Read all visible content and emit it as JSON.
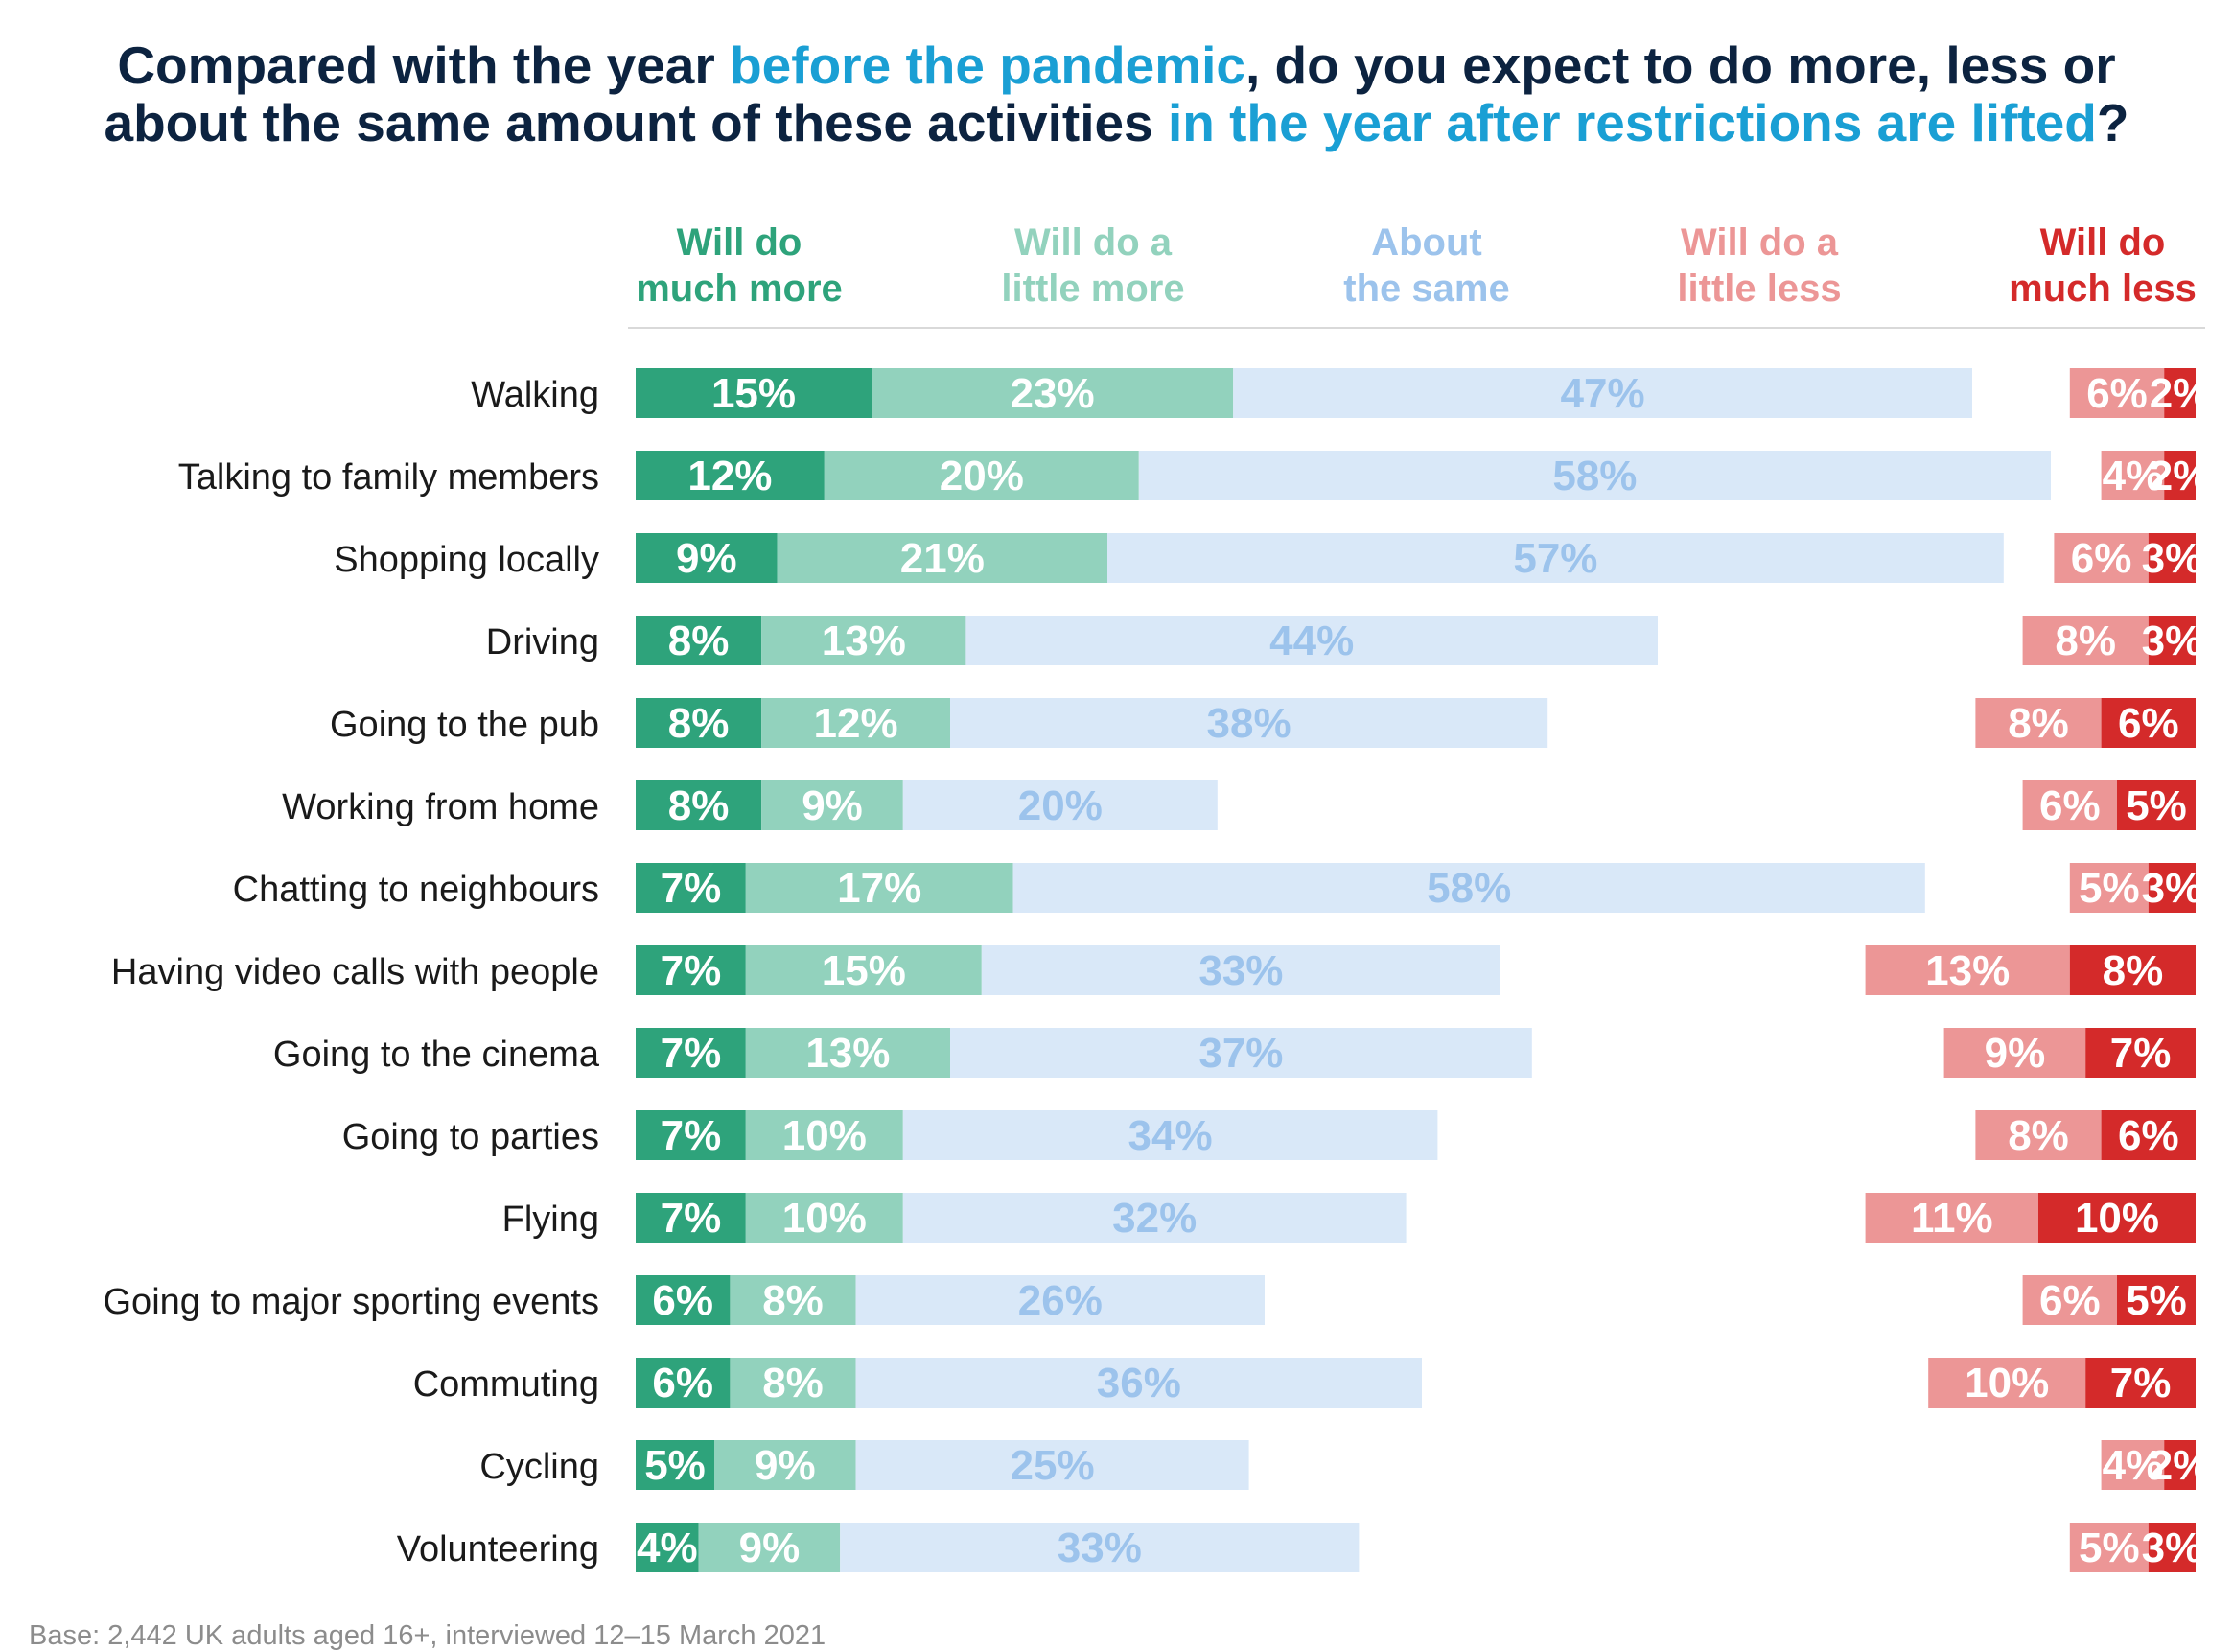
{
  "title": {
    "line1_a": "Compared with the year ",
    "line1_b": "before the pandemic",
    "line1_c": ", do you expect to do more, less or",
    "line2_a": "about the same amount of these activities ",
    "line2_b": "in the year after restrictions are lifted",
    "line2_c": "?"
  },
  "footnote": "Base: 2,442 UK adults aged 16+, interviewed 12–15 March 2021",
  "colors": {
    "title_dark": "#0c2340",
    "title_accent": "#1a9fd4",
    "much_more": "#2ea37b",
    "little_more": "#92d2bd",
    "same": "#d9e8f8",
    "little_less": "#ec9696",
    "much_less": "#d42a2a",
    "same_label": "#9cc3ec"
  },
  "chart_data": {
    "type": "bar",
    "orientation": "horizontal",
    "stacked": true,
    "categories": [
      "Walking",
      "Talking to family members",
      "Shopping locally",
      "Driving",
      "Going to the pub",
      "Working from home",
      "Chatting to neighbours",
      "Having video calls with people",
      "Going to the cinema",
      "Going to parties",
      "Flying",
      "Going to major sporting events",
      "Commuting",
      "Cycling",
      "Volunteering"
    ],
    "series": [
      {
        "name": "Will do much more",
        "legend_lines": [
          "Will do",
          "much more"
        ],
        "color_key": "much_more",
        "label_color": "#ffffff",
        "group": "more",
        "values": [
          15,
          12,
          9,
          8,
          8,
          8,
          7,
          7,
          7,
          7,
          7,
          6,
          6,
          5,
          4
        ]
      },
      {
        "name": "Will do a little more",
        "legend_lines": [
          "Will do a",
          "little more"
        ],
        "color_key": "little_more",
        "label_color": "#ffffff",
        "group": "more",
        "values": [
          23,
          20,
          21,
          13,
          12,
          9,
          17,
          15,
          13,
          10,
          10,
          8,
          8,
          9,
          9
        ]
      },
      {
        "name": "About the same",
        "legend_lines": [
          "About",
          "the same"
        ],
        "color_key": "same",
        "label_color": "#9cc3ec",
        "group": "more",
        "values": [
          47,
          58,
          57,
          44,
          38,
          20,
          58,
          33,
          37,
          34,
          32,
          26,
          36,
          25,
          33
        ]
      },
      {
        "name": "Will do a little less",
        "legend_lines": [
          "Will do a",
          "little less"
        ],
        "color_key": "little_less",
        "label_color": "#ffffff",
        "group": "less",
        "values": [
          6,
          4,
          6,
          8,
          8,
          6,
          5,
          13,
          9,
          8,
          11,
          6,
          10,
          4,
          5
        ]
      },
      {
        "name": "Will do much less",
        "legend_lines": [
          "Will do",
          "much less"
        ],
        "color_key": "much_less",
        "label_color": "#ffffff",
        "group": "less",
        "values": [
          2,
          2,
          3,
          3,
          6,
          5,
          3,
          8,
          7,
          6,
          10,
          5,
          7,
          2,
          3
        ]
      }
    ],
    "unit": "%"
  }
}
